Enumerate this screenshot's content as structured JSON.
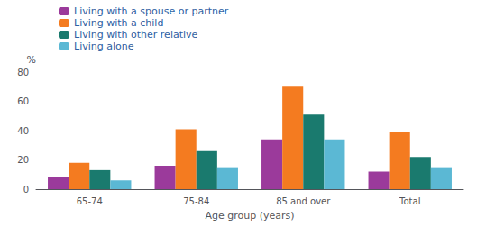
{
  "chart_data": {
    "type": "bar",
    "xlabel": "Age group (years)",
    "ylabel": "%",
    "categories": [
      "65-74",
      "75-84",
      "85 and over",
      "Total"
    ],
    "series": [
      {
        "name": "Living with a spouse or partner",
        "color": "#9B3A9B",
        "values": [
          8,
          16,
          34,
          12
        ]
      },
      {
        "name": "Living with a child",
        "color": "#F47B20",
        "values": [
          18,
          41,
          70,
          39
        ]
      },
      {
        "name": "Living with other relative",
        "color": "#1A7A6E",
        "values": [
          13,
          26,
          51,
          22
        ]
      },
      {
        "name": "Living alone",
        "color": "#5BB8D4",
        "values": [
          6,
          15,
          34,
          15
        ]
      }
    ],
    "ylim": [
      0,
      80
    ],
    "yticks": [
      0,
      20,
      40,
      60,
      80
    ],
    "grid": false,
    "legend": "upper left"
  }
}
